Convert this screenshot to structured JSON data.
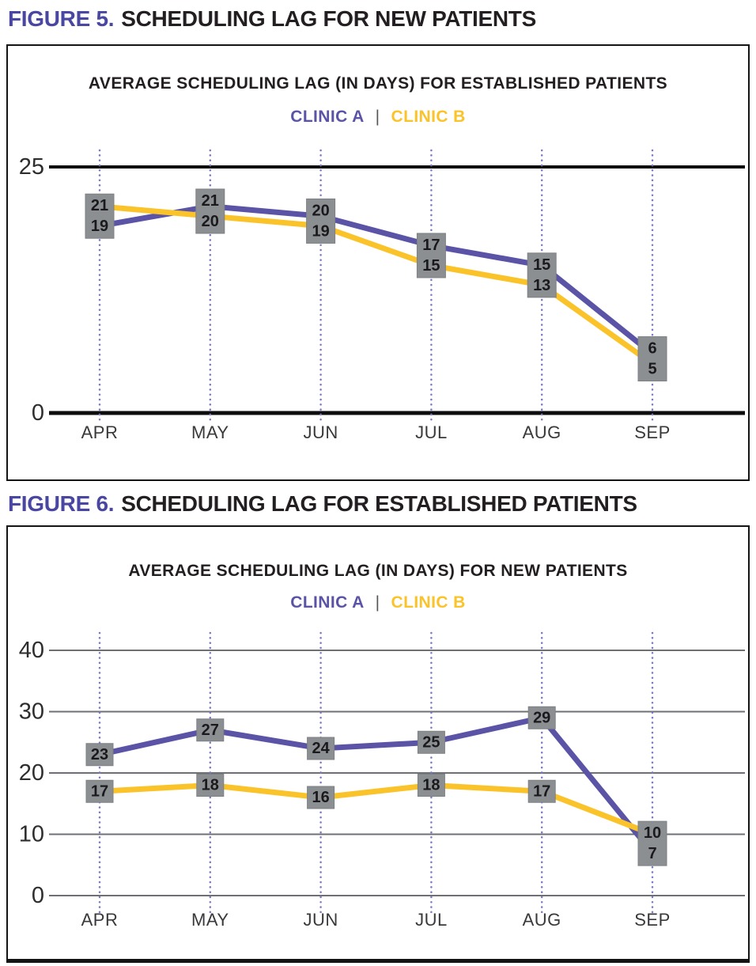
{
  "legend_separator": "|",
  "colors": {
    "clinic_a": "#5B54A6",
    "clinic_b": "#FBC32A",
    "label_box_fill": "#8C8F92",
    "label_box_edge": "#7D8083",
    "label_box_text": "#1A1A1C",
    "heading_accent": "#4A47A3",
    "heading_text": "#221E21",
    "chart1_gridline": "#0D0D0D",
    "chart2_gridline": "#6F7073",
    "dotted_gridline": "#7B78C4",
    "y_axis_label": "#2D2D2F",
    "month_label": "#39393B",
    "legend_separator_color": "#55565A",
    "chart_border": "#141414"
  },
  "figures": [
    {
      "heading_prefix": "FIGURE 5.",
      "heading_title": "SCHEDULING LAG FOR NEW PATIENTS"
    },
    {
      "heading_prefix": "FIGURE 6.",
      "heading_title": "SCHEDULING LAG FOR ESTABLISHED PATIENTS"
    }
  ],
  "chart_data": [
    {
      "type": "line",
      "title": "AVERAGE SCHEDULING LAG (IN DAYS) FOR ESTABLISHED PATIENTS",
      "categories": [
        "APR",
        "MAY",
        "JUN",
        "JUL",
        "AUG",
        "SEP"
      ],
      "series": [
        {
          "name": "CLINIC A",
          "color": "#5B54A6",
          "values": [
            19,
            21,
            20,
            17,
            15,
            6
          ]
        },
        {
          "name": "CLINIC B",
          "color": "#FBC32A",
          "values": [
            21,
            20,
            19,
            15,
            13,
            5
          ]
        }
      ],
      "xlabel": "",
      "ylabel": "",
      "yticks": [
        0,
        25
      ],
      "ylim": [
        0,
        25
      ],
      "grid": "horizontal-bold-black",
      "vertical_guides": "dotted-purple-per-month",
      "legend_position": "top-center",
      "data_labels": "values-in-gray-boxes"
    },
    {
      "type": "line",
      "title": "AVERAGE SCHEDULING LAG (IN DAYS) FOR NEW PATIENTS",
      "categories": [
        "APR",
        "MAY",
        "JUN",
        "JUL",
        "AUG",
        "SEP"
      ],
      "series": [
        {
          "name": "CLINIC A",
          "color": "#5B54A6",
          "values": [
            23,
            27,
            24,
            25,
            29,
            7
          ]
        },
        {
          "name": "CLINIC B",
          "color": "#FBC32A",
          "values": [
            17,
            18,
            16,
            18,
            17,
            10
          ]
        }
      ],
      "xlabel": "",
      "ylabel": "",
      "yticks": [
        0,
        10,
        20,
        30,
        40
      ],
      "ylim": [
        0,
        40
      ],
      "grid": "horizontal-thin-gray",
      "vertical_guides": "dotted-purple-per-month",
      "legend_position": "top-center",
      "data_labels": "values-in-gray-boxes"
    }
  ]
}
